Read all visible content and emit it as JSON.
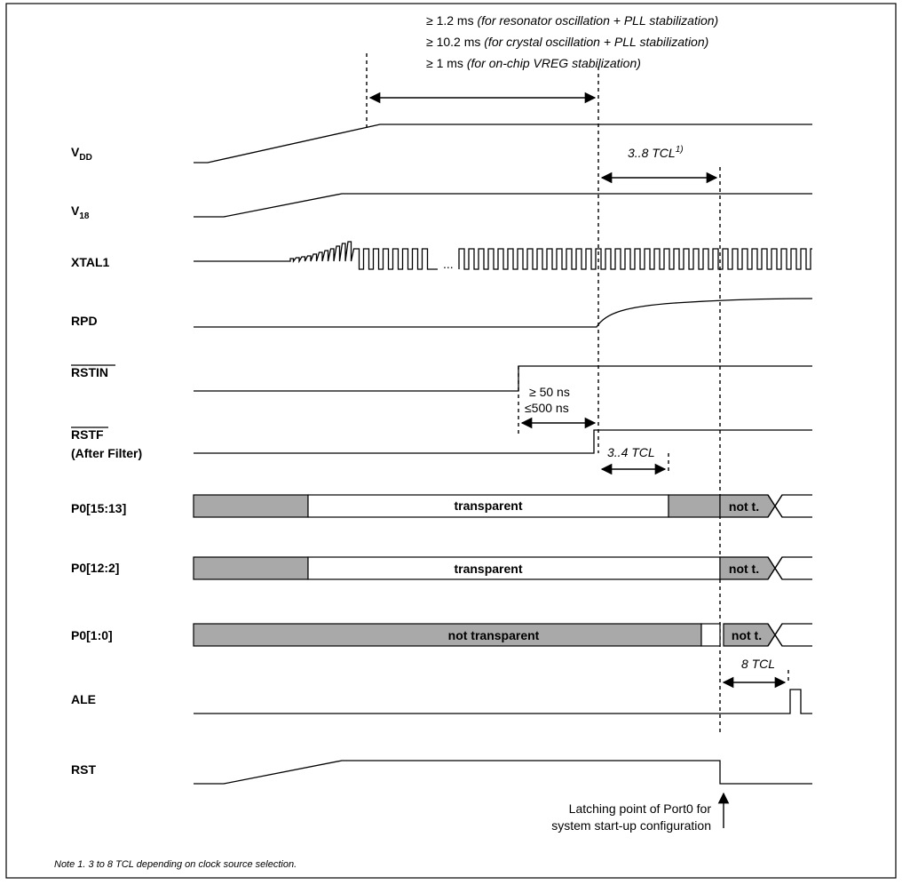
{
  "header_notes": {
    "line1": {
      "value": "≥ 1.2 ms",
      "detail": "(for resonator oscillation + PLL stabilization)"
    },
    "line2": {
      "value": "≥ 10.2 ms",
      "detail": "(for crystal oscillation + PLL stabilization)"
    },
    "line3": {
      "value": "≥ 1 ms",
      "detail": "(for on-chip VREG stabilization)"
    }
  },
  "signals": {
    "vdd": {
      "main": "V",
      "sub": "DD"
    },
    "v18": {
      "main": "V",
      "sub": "18"
    },
    "xtal1": "XTAL1",
    "rpd": "RPD",
    "rstin": "RSTIN",
    "rstf": "RSTF",
    "rstf_note": "(After Filter)",
    "p0_15_13": "P0[15:13]",
    "p0_12_2": "P0[12:2]",
    "p0_1_0": "P0[1:0]",
    "ale": "ALE",
    "rst": "RST"
  },
  "timing_labels": {
    "tcl_3_8": "3..8 TCL",
    "tcl_3_8_sup": "1)",
    "ns_min": "≥ 50 ns",
    "ns_max": "≤500 ns",
    "tcl_3_4": "3..4 TCL",
    "tcl_8": "8 TCL",
    "xtal_ellipsis": "..."
  },
  "bus_labels": {
    "transparent_1": "transparent",
    "transparent_2": "transparent",
    "not_transparent": "not transparent",
    "not_t_1": "not t.",
    "not_t_2": "not t.",
    "not_t_3": "not t."
  },
  "latch_note": {
    "line1": "Latching point of Port0 for",
    "line2": "system start-up configuration"
  },
  "footnote": "Note 1. 3 to 8 TCL depending on clock source selection.",
  "colors": {
    "bus_fill": "#a9a9a9",
    "line": "#000000"
  }
}
